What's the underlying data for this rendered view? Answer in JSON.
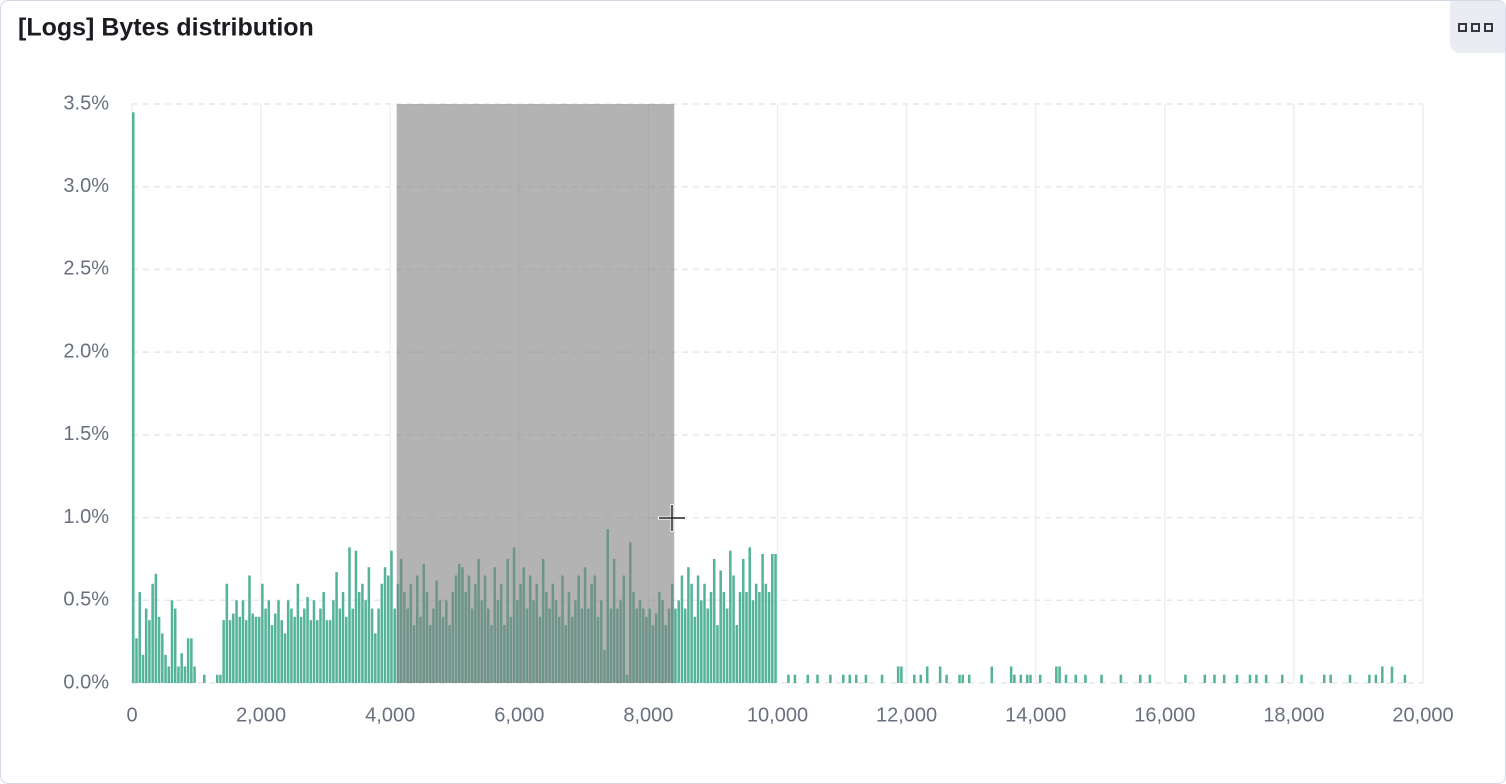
{
  "chart_data": {
    "type": "histogram",
    "title": "[Logs] Bytes distribution",
    "color": "#54b399",
    "xlim": [
      0,
      20000
    ],
    "ylim": [
      0,
      3.5
    ],
    "xticks": [
      0,
      {
        "value": 2000,
        "label": "2,000"
      },
      {
        "value": 4000,
        "label": "4,000"
      },
      {
        "value": 6000,
        "label": "6,000"
      },
      {
        "value": 8000,
        "label": "8,000"
      },
      {
        "value": 10000,
        "label": "10,000"
      },
      {
        "value": 12000,
        "label": "12,000"
      },
      {
        "value": 14000,
        "label": "14,000"
      },
      {
        "value": 16000,
        "label": "16,000"
      },
      {
        "value": 18000,
        "label": "18,000"
      },
      {
        "value": 20000,
        "label": "20,000"
      }
    ],
    "yticks": [
      {
        "value": 0,
        "label": "0.0%"
      },
      {
        "value": 0.5,
        "label": "0.5%"
      },
      {
        "value": 1,
        "label": "1.0%"
      },
      {
        "value": 1.5,
        "label": "1.5%"
      },
      {
        "value": 2,
        "label": "2.0%"
      },
      {
        "value": 2.5,
        "label": "2.5%"
      },
      {
        "value": 3,
        "label": "3.0%"
      },
      {
        "value": 3.5,
        "label": "3.5%"
      }
    ],
    "grid": true,
    "selection": {
      "start": 4100,
      "end": 8400
    },
    "bins": [
      0,
      50,
      100,
      150,
      200,
      250,
      300,
      350,
      400,
      450,
      500,
      550,
      600,
      650,
      700,
      750,
      800,
      850,
      900,
      950,
      1000,
      1050,
      1100,
      1150,
      1200,
      1250,
      1300,
      1350,
      1400,
      1450,
      1500,
      1550,
      1600,
      1650,
      1700,
      1750,
      1800,
      1850,
      1900,
      1950,
      2000,
      2050,
      2100,
      2150,
      2200,
      2250,
      2300,
      2350,
      2400,
      2450,
      2500,
      2550,
      2600,
      2650,
      2700,
      2750,
      2800,
      2850,
      2900,
      2950,
      3000,
      3050,
      3100,
      3150,
      3200,
      3250,
      3300,
      3350,
      3400,
      3450,
      3500,
      3550,
      3600,
      3650,
      3700,
      3750,
      3800,
      3850,
      3900,
      3950,
      4000,
      4050,
      4100,
      4150,
      4200,
      4250,
      4300,
      4350,
      4400,
      4450,
      4500,
      4550,
      4600,
      4650,
      4700,
      4750,
      4800,
      4850,
      4900,
      4950,
      5000,
      5050,
      5100,
      5150,
      5200,
      5250,
      5300,
      5350,
      5400,
      5450,
      5500,
      5550,
      5600,
      5650,
      5700,
      5750,
      5800,
      5850,
      5900,
      5950,
      6000,
      6050,
      6100,
      6150,
      6200,
      6250,
      6300,
      6350,
      6400,
      6450,
      6500,
      6550,
      6600,
      6650,
      6700,
      6750,
      6800,
      6850,
      6900,
      6950,
      7000,
      7050,
      7100,
      7150,
      7200,
      7250,
      7300,
      7350,
      7400,
      7450,
      7500,
      7550,
      7600,
      7650,
      7700,
      7750,
      7800,
      7850,
      7900,
      7950,
      8000,
      8050,
      8100,
      8150,
      8200,
      8250,
      8300,
      8350,
      8400,
      8450,
      8500,
      8550,
      8600,
      8650,
      8700,
      8750,
      8800,
      8850,
      8900,
      8950,
      9000,
      9050,
      9100,
      9150,
      9200,
      9250,
      9300,
      9350,
      9400,
      9450,
      9500,
      9550,
      9600,
      9650,
      9700,
      9750,
      9800,
      9850,
      9900,
      9950,
      10000,
      10050,
      10100,
      10150,
      10200,
      10250,
      10300,
      10350,
      10400,
      10450,
      10500,
      10550,
      10600,
      10650,
      10700,
      10750,
      10800,
      10850,
      10900,
      10950,
      11000,
      11050,
      11100,
      11150,
      11200,
      11250,
      11300,
      11350,
      11400,
      11450,
      11500,
      11550,
      11600,
      11650,
      11700,
      11750,
      11800,
      11850,
      11900,
      11950,
      12000,
      12050,
      12100,
      12150,
      12200,
      12250,
      12300,
      12350,
      12400,
      12450,
      12500,
      12550,
      12600,
      12650,
      12700,
      12750,
      12800,
      12850,
      12900,
      12950,
      13000,
      13050,
      13100,
      13150,
      13200,
      13250,
      13300,
      13350,
      13400,
      13450,
      13500,
      13550,
      13600,
      13650,
      13700,
      13750,
      13800,
      13850,
      13900,
      13950,
      14000,
      14050,
      14100,
      14150,
      14200,
      14250,
      14300,
      14350,
      14400,
      14450,
      14500,
      14550,
      14600,
      14650,
      14700,
      14750,
      14800,
      14850,
      14900,
      14950,
      15000,
      15050,
      15100,
      15150,
      15200,
      15250,
      15300,
      15350,
      15400,
      15450,
      15500,
      15550,
      15600,
      15650,
      15700,
      15750,
      15800,
      15850,
      15900,
      15950,
      16000,
      16050,
      16100,
      16150,
      16200,
      16250,
      16300,
      16350,
      16400,
      16450,
      16500,
      16550,
      16600,
      16650,
      16700,
      16750,
      16800,
      16850,
      16900,
      16950,
      17000,
      17050,
      17100,
      17150,
      17200,
      17250,
      17300,
      17350,
      17400,
      17450,
      17500,
      17550,
      17600,
      17650,
      17700,
      17750,
      17800,
      17850,
      17900,
      17950,
      18000,
      18050,
      18100,
      18150,
      18200,
      18250,
      18300,
      18350,
      18400,
      18450,
      18500,
      18550,
      18600,
      18650,
      18700,
      18750,
      18800,
      18850,
      18900,
      18950,
      19000,
      19050,
      19100,
      19150,
      19200,
      19250,
      19300,
      19350,
      19400,
      19450,
      19500,
      19550,
      19600,
      19650,
      19700,
      19750,
      19800,
      19850,
      19900,
      19950,
      20000
    ],
    "values": [
      3.45,
      0.27,
      0.55,
      0.17,
      0.45,
      0.38,
      0.6,
      0.66,
      0.4,
      0.3,
      0.17,
      0.1,
      0.5,
      0.45,
      0.1,
      0.18,
      0.1,
      0.27,
      0.27,
      0.1,
      0,
      0,
      0.05,
      0,
      0,
      0,
      0.05,
      0.05,
      0.38,
      0.6,
      0.38,
      0.42,
      0.5,
      0.4,
      0.5,
      0.38,
      0.65,
      0.42,
      0.4,
      0.4,
      0.6,
      0.45,
      0.5,
      0.35,
      0.42,
      0.5,
      0.38,
      0.3,
      0.5,
      0.45,
      0.4,
      0.6,
      0.4,
      0.45,
      0.52,
      0.38,
      0.5,
      0.38,
      0.45,
      0.55,
      0.38,
      0.38,
      0.5,
      0.67,
      0.45,
      0.55,
      0.4,
      0.82,
      0.45,
      0.8,
      0.55,
      0.6,
      0.5,
      0.7,
      0.45,
      0.3,
      0.45,
      0.6,
      0.7,
      0.65,
      0.8,
      0.45,
      0.6,
      0.75,
      0.55,
      0.45,
      0.6,
      0.35,
      0.65,
      0.4,
      0.72,
      0.55,
      0.35,
      0.45,
      0.62,
      0.5,
      0.4,
      0.5,
      0.35,
      0.55,
      0.65,
      0.72,
      0.7,
      0.55,
      0.65,
      0.45,
      0.6,
      0.75,
      0.5,
      0.65,
      0.45,
      0.35,
      0.7,
      0.5,
      0.6,
      0.35,
      0.75,
      0.4,
      0.82,
      0.5,
      0.6,
      0.7,
      0.45,
      0.65,
      0.5,
      0.6,
      0.4,
      0.75,
      0.55,
      0.45,
      0.6,
      0.5,
      0.4,
      0.65,
      0.35,
      0.55,
      0.4,
      0.5,
      0.65,
      0.45,
      0.7,
      0.45,
      0.6,
      0.65,
      0.4,
      0.5,
      0.2,
      0.93,
      0.45,
      0.75,
      0.45,
      0.5,
      0.65,
      0.05,
      0.85,
      0.55,
      0.45,
      0.5,
      0.45,
      0.4,
      0.45,
      0.35,
      0.42,
      0.55,
      0.5,
      0.35,
      0.45,
      0.6,
      0.45,
      0.5,
      0.65,
      0.45,
      0.7,
      0.6,
      0.4,
      0.65,
      0.5,
      0.6,
      0.45,
      0.55,
      0.75,
      0.35,
      0.68,
      0.55,
      0.45,
      0.8,
      0.65,
      0.35,
      0.55,
      0.75,
      0.55,
      0.82,
      0.5,
      0.6,
      0.55,
      0.78,
      0.6,
      0.55,
      0.78,
      0.78,
      0,
      0,
      0,
      0.05,
      0,
      0.05,
      0,
      0,
      0,
      0.05,
      0,
      0,
      0.05,
      0,
      0,
      0,
      0.05,
      0,
      0,
      0,
      0.05,
      0,
      0.05,
      0,
      0.05,
      0,
      0,
      0.05,
      0,
      0,
      0,
      0,
      0.05,
      0,
      0,
      0,
      0,
      0.1,
      0.1,
      0,
      0,
      0,
      0.05,
      0,
      0.05,
      0,
      0.1,
      0,
      0,
      0,
      0.1,
      0,
      0.05,
      0,
      0,
      0,
      0.05,
      0.05,
      0,
      0.05,
      0,
      0,
      0,
      0,
      0,
      0,
      0.1,
      0,
      0,
      0,
      0,
      0,
      0.1,
      0.05,
      0,
      0.05,
      0,
      0.05,
      0.05,
      0,
      0,
      0.05,
      0,
      0,
      0,
      0,
      0.1,
      0.1,
      0,
      0.05,
      0,
      0,
      0.05,
      0,
      0,
      0.05,
      0,
      0,
      0,
      0,
      0.05,
      0,
      0,
      0,
      0,
      0,
      0.05,
      0,
      0,
      0,
      0,
      0,
      0.05,
      0,
      0,
      0.05,
      0,
      0,
      0,
      0,
      0,
      0,
      0,
      0,
      0,
      0,
      0.05,
      0,
      0,
      0,
      0,
      0,
      0.05,
      0,
      0,
      0.05,
      0,
      0,
      0.05,
      0,
      0,
      0,
      0.05,
      0,
      0,
      0,
      0.05,
      0,
      0.05,
      0,
      0,
      0.05,
      0,
      0,
      0,
      0,
      0.05,
      0,
      0,
      0,
      0,
      0,
      0.05,
      0,
      0,
      0,
      0,
      0,
      0,
      0.05,
      0,
      0.05,
      0,
      0,
      0,
      0,
      0,
      0.05,
      0,
      0,
      0,
      0,
      0,
      0.05,
      0,
      0.05,
      0,
      0.1,
      0,
      0,
      0.1,
      0,
      0,
      0,
      0.05,
      0,
      0,
      0,
      0,
      0
    ]
  }
}
